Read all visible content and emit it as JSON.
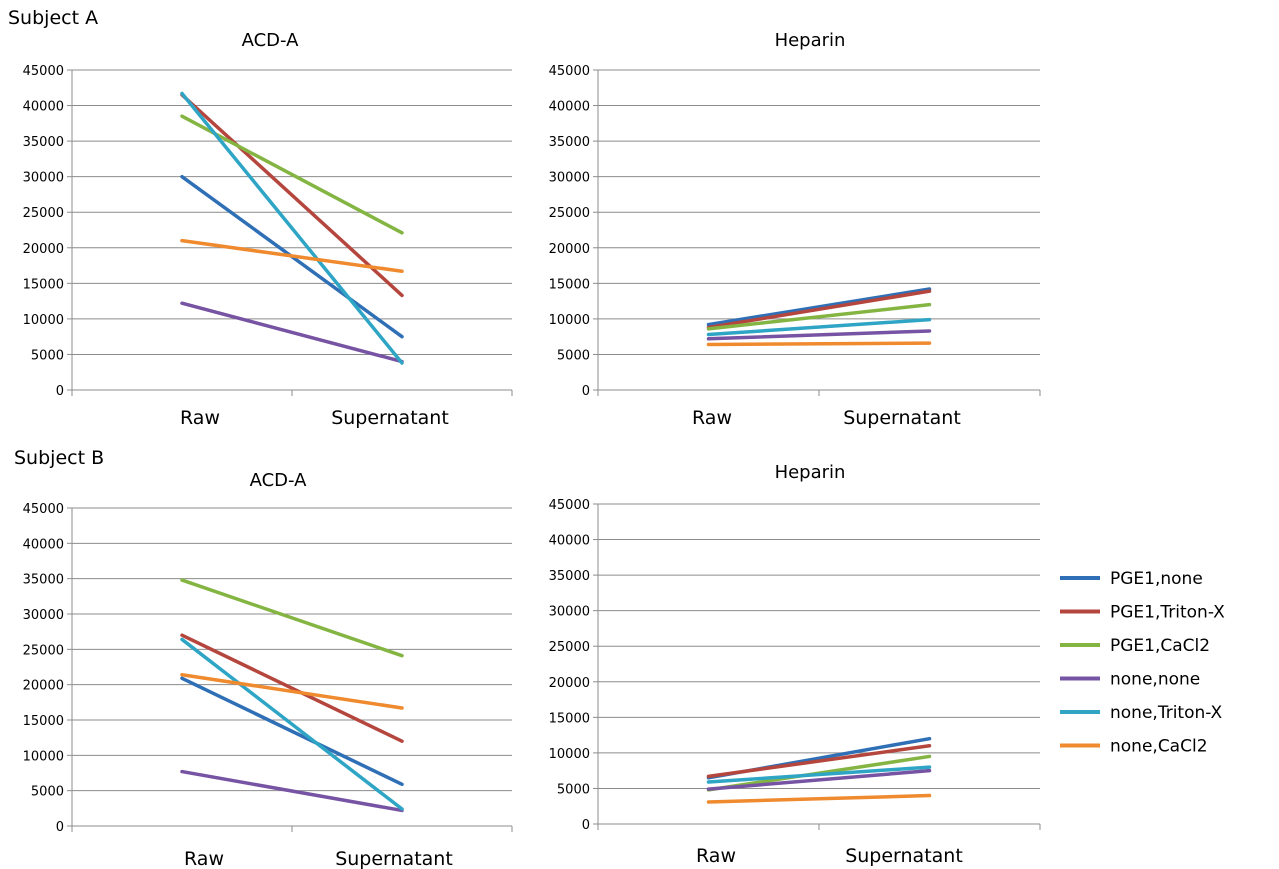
{
  "colors": {
    "PGE1,none": "#2f6fb6",
    "PGE1,Triton-X": "#b5463e",
    "PGE1,CaCl2": "#84b543",
    "none,none": "#7654a3",
    "none,Triton-X": "#2fa5c6",
    "none,CaCl2": "#ef8a2f",
    "grid": "#8c8c8c"
  },
  "legend": {
    "items": [
      "PGE1,none",
      "PGE1,Triton-X",
      "PGE1,CaCl2",
      "none,none",
      "none,Triton-X",
      "none,CaCl2"
    ]
  },
  "chart_data": [
    {
      "type": "line",
      "group": "Subject A",
      "title": "ACD-A",
      "categories": [
        "Raw",
        "Supernatant"
      ],
      "ylim": [
        0,
        45000
      ],
      "yticks": [
        0,
        5000,
        10000,
        15000,
        20000,
        25000,
        30000,
        35000,
        40000,
        45000
      ],
      "grid": true,
      "series": [
        {
          "name": "PGE1,none",
          "values": [
            30000,
            7500
          ]
        },
        {
          "name": "PGE1,Triton-X",
          "values": [
            41500,
            13300
          ]
        },
        {
          "name": "PGE1,CaCl2",
          "values": [
            38500,
            22100
          ]
        },
        {
          "name": "none,none",
          "values": [
            12200,
            4000
          ]
        },
        {
          "name": "none,Triton-X",
          "values": [
            41700,
            3800
          ]
        },
        {
          "name": "none,CaCl2",
          "values": [
            21000,
            16700
          ]
        }
      ]
    },
    {
      "type": "line",
      "title": "Heparin",
      "categories": [
        "Raw",
        "Supernatant"
      ],
      "ylim": [
        0,
        45000
      ],
      "yticks": [
        0,
        5000,
        10000,
        15000,
        20000,
        25000,
        30000,
        35000,
        40000,
        45000
      ],
      "grid": true,
      "series": [
        {
          "name": "PGE1,none",
          "values": [
            9200,
            14200
          ]
        },
        {
          "name": "PGE1,Triton-X",
          "values": [
            8800,
            13900
          ]
        },
        {
          "name": "PGE1,CaCl2",
          "values": [
            8600,
            12000
          ]
        },
        {
          "name": "none,none",
          "values": [
            7200,
            8300
          ]
        },
        {
          "name": "none,Triton-X",
          "values": [
            7800,
            9900
          ]
        },
        {
          "name": "none,CaCl2",
          "values": [
            6400,
            6600
          ]
        }
      ]
    },
    {
      "type": "line",
      "group": "Subject B",
      "title": "ACD-A",
      "categories": [
        "Raw",
        "Supernatant"
      ],
      "ylim": [
        0,
        45000
      ],
      "yticks": [
        0,
        5000,
        10000,
        15000,
        20000,
        25000,
        30000,
        35000,
        40000,
        45000
      ],
      "grid": true,
      "series": [
        {
          "name": "PGE1,none",
          "values": [
            20900,
            5900
          ]
        },
        {
          "name": "PGE1,Triton-X",
          "values": [
            27000,
            12000
          ]
        },
        {
          "name": "PGE1,CaCl2",
          "values": [
            34800,
            24100
          ]
        },
        {
          "name": "none,none",
          "values": [
            7700,
            2200
          ]
        },
        {
          "name": "none,Triton-X",
          "values": [
            26400,
            2400
          ]
        },
        {
          "name": "none,CaCl2",
          "values": [
            21400,
            16700
          ]
        }
      ]
    },
    {
      "type": "line",
      "title": "Heparin",
      "categories": [
        "Raw",
        "Supernatant"
      ],
      "ylim": [
        0,
        45000
      ],
      "yticks": [
        0,
        5000,
        10000,
        15000,
        20000,
        25000,
        30000,
        35000,
        40000,
        45000
      ],
      "grid": true,
      "series": [
        {
          "name": "PGE1,none",
          "values": [
            6500,
            12000
          ]
        },
        {
          "name": "PGE1,Triton-X",
          "values": [
            6700,
            11000
          ]
        },
        {
          "name": "PGE1,CaCl2",
          "values": [
            4800,
            9500
          ]
        },
        {
          "name": "none,none",
          "values": [
            4900,
            7500
          ]
        },
        {
          "name": "none,Triton-X",
          "values": [
            5900,
            8000
          ]
        },
        {
          "name": "none,CaCl2",
          "values": [
            3100,
            4000
          ]
        }
      ]
    }
  ]
}
